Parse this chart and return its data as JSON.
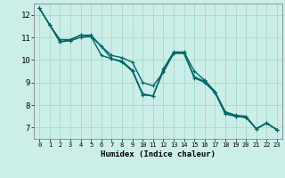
{
  "background_color": "#cceee8",
  "grid_color": "#aaddcc",
  "line_color": "#006666",
  "line1": {
    "x": [
      0,
      1,
      2,
      3,
      4,
      5,
      6,
      7,
      8,
      9,
      10,
      11,
      12,
      13,
      14,
      15,
      16,
      17,
      18,
      19,
      20,
      21,
      22,
      23
    ],
    "y": [
      12.3,
      11.55,
      10.8,
      10.85,
      11.0,
      11.05,
      10.2,
      10.05,
      9.95,
      9.55,
      8.5,
      8.4,
      9.6,
      10.35,
      10.35,
      9.5,
      9.1,
      8.6,
      7.7,
      7.55,
      7.5,
      6.95,
      7.2,
      6.9
    ]
  },
  "line2": {
    "x": [
      0,
      1,
      2,
      3,
      4,
      5,
      6,
      7,
      8,
      9,
      10,
      11,
      12,
      13,
      14,
      15,
      16,
      17,
      18,
      19,
      20,
      21,
      22,
      23
    ],
    "y": [
      12.3,
      11.55,
      10.9,
      10.9,
      11.1,
      11.1,
      10.6,
      10.2,
      10.1,
      9.9,
      9.0,
      8.85,
      9.45,
      10.3,
      10.3,
      9.25,
      9.05,
      8.55,
      7.65,
      7.5,
      7.45,
      6.95,
      7.2,
      6.9
    ]
  },
  "line3": {
    "x": [
      0,
      1,
      2,
      3,
      4,
      5,
      6,
      7,
      8,
      9,
      10,
      11,
      12,
      13,
      14,
      15,
      16,
      17,
      18,
      19,
      20,
      21,
      22,
      23
    ],
    "y": [
      12.3,
      11.55,
      10.8,
      10.9,
      11.1,
      11.05,
      10.6,
      10.05,
      9.9,
      9.5,
      8.45,
      8.4,
      9.5,
      10.3,
      10.3,
      9.2,
      9.0,
      8.55,
      7.6,
      7.5,
      7.45,
      6.95,
      7.2,
      6.9
    ]
  },
  "xlabel": "Humidex (Indice chaleur)",
  "xlim": [
    -0.5,
    23.5
  ],
  "ylim": [
    6.5,
    12.5
  ],
  "yticks": [
    7,
    8,
    9,
    10,
    11,
    12
  ],
  "xticks": [
    0,
    1,
    2,
    3,
    4,
    5,
    6,
    7,
    8,
    9,
    10,
    11,
    12,
    13,
    14,
    15,
    16,
    17,
    18,
    19,
    20,
    21,
    22,
    23
  ],
  "marker": "+",
  "marker_size": 3,
  "linewidth": 1.0,
  "tick_fontsize_x": 5.0,
  "tick_fontsize_y": 6.5,
  "xlabel_fontsize": 6.5
}
